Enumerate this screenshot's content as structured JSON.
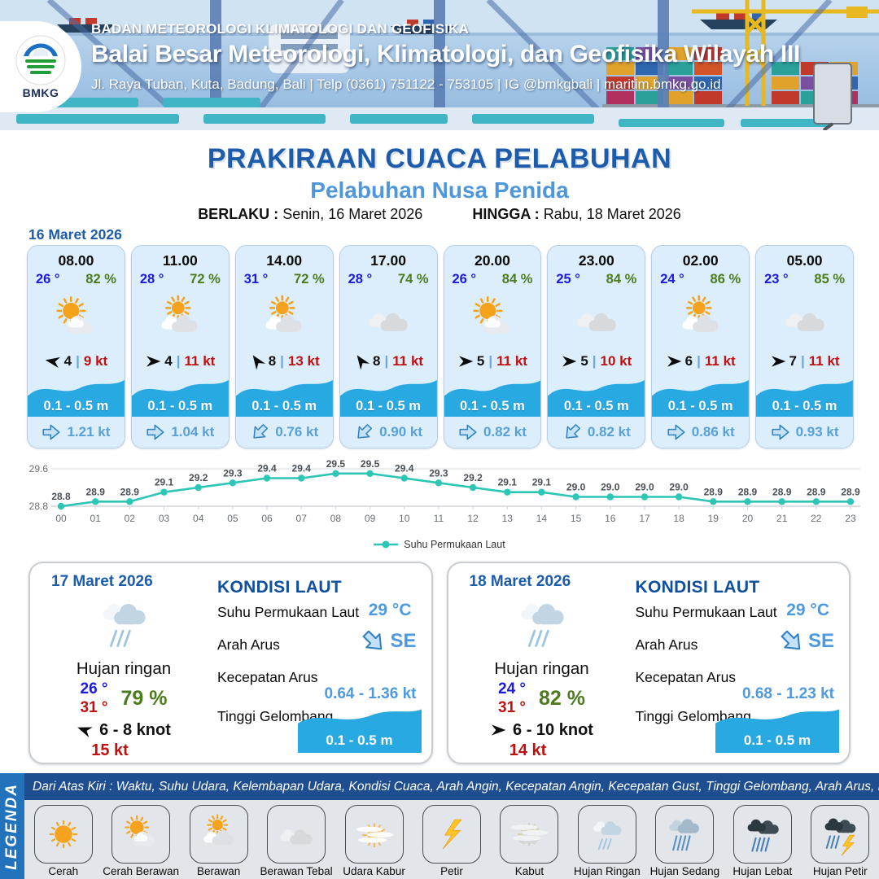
{
  "header": {
    "logo_label": "BMKG",
    "agency": "BADAN METEOROLOGI KLIMATOLOGI DAN GEOFISIKA",
    "office": "Balai Besar Meteorologi, Klimatologi, dan Geofisika Wilayah III",
    "address": "Jl. Raya Tuban, Kuta, Badung, Bali | Telp (0361) 751122 - 753105 | IG @bmkgbali | maritim.bmkg.go.id"
  },
  "title": {
    "main": "PRAKIRAAN CUACA PELABUHAN",
    "port": "Pelabuhan Nusa Penida",
    "valid_from_label": "BERLAKU :",
    "valid_from": "Senin, 16 Maret 2026",
    "valid_to_label": "HINGGA :",
    "valid_to": "Rabu, 18 Maret 2026"
  },
  "day1": {
    "date": "16 Maret 2026",
    "hours": [
      {
        "time": "08.00",
        "temp": "26 °",
        "rh": "82 %",
        "icon": "cerah-berawan",
        "wind_dir_deg": 190,
        "wind": "4",
        "gust": "9 kt",
        "wave": "0.1 - 0.5 m",
        "cur_dir_deg": 0,
        "current": "1.21 kt"
      },
      {
        "time": "11.00",
        "temp": "28 °",
        "rh": "72 %",
        "icon": "berawan",
        "wind_dir_deg": 0,
        "wind": "4",
        "gust": "11 kt",
        "wave": "0.1 - 0.5 m",
        "cur_dir_deg": 0,
        "current": "1.04 kt"
      },
      {
        "time": "14.00",
        "temp": "31 °",
        "rh": "72 %",
        "icon": "berawan",
        "wind_dir_deg": -125,
        "wind": "8",
        "gust": "13 kt",
        "wave": "0.1 - 0.5 m",
        "cur_dir_deg": 135,
        "current": "0.76 kt"
      },
      {
        "time": "17.00",
        "temp": "28 °",
        "rh": "74 %",
        "icon": "berawan-tebal",
        "wind_dir_deg": -125,
        "wind": "8",
        "gust": "11 kt",
        "wave": "0.1 - 0.5 m",
        "cur_dir_deg": 135,
        "current": "0.90 kt"
      },
      {
        "time": "20.00",
        "temp": "26 °",
        "rh": "84 %",
        "icon": "cerah-berawan",
        "wind_dir_deg": 0,
        "wind": "5",
        "gust": "11 kt",
        "wave": "0.1 - 0.5 m",
        "cur_dir_deg": 0,
        "current": "0.82 kt"
      },
      {
        "time": "23.00",
        "temp": "25 °",
        "rh": "84 %",
        "icon": "berawan-tebal",
        "wind_dir_deg": 0,
        "wind": "5",
        "gust": "10 kt",
        "wave": "0.1 - 0.5 m",
        "cur_dir_deg": 135,
        "current": "0.82 kt"
      },
      {
        "time": "02.00",
        "temp": "24 °",
        "rh": "86 %",
        "icon": "berawan",
        "wind_dir_deg": 0,
        "wind": "6",
        "gust": "11 kt",
        "wave": "0.1 - 0.5 m",
        "cur_dir_deg": 0,
        "current": "0.86 kt"
      },
      {
        "time": "05.00",
        "temp": "23 °",
        "rh": "85 %",
        "icon": "berawan-tebal",
        "wind_dir_deg": 0,
        "wind": "7",
        "gust": "11 kt",
        "wave": "0.1 - 0.5 m",
        "cur_dir_deg": 0,
        "current": "0.93 kt"
      }
    ]
  },
  "chart_data": {
    "type": "line",
    "x": [
      "00",
      "01",
      "02",
      "03",
      "04",
      "05",
      "06",
      "07",
      "08",
      "09",
      "10",
      "11",
      "12",
      "13",
      "14",
      "15",
      "16",
      "17",
      "18",
      "19",
      "20",
      "21",
      "22",
      "23"
    ],
    "values": [
      28.8,
      28.9,
      28.9,
      29.1,
      29.2,
      29.3,
      29.4,
      29.4,
      29.5,
      29.5,
      29.4,
      29.3,
      29.2,
      29.1,
      29.1,
      29.0,
      29.0,
      29.0,
      29.0,
      28.9,
      28.9,
      28.9,
      28.9,
      28.9
    ],
    "series_name": "Suhu Permukaan Laut",
    "ylim": [
      28.8,
      29.6
    ],
    "ytick_labels": [
      "29.6",
      "28.8"
    ],
    "line_color": "#2cc5b6",
    "legend_position": "bottom-center",
    "grid": "horizontal-only"
  },
  "days": [
    {
      "date": "17 Maret 2026",
      "condition": "Hujan ringan",
      "icon": "hujan-ringan",
      "temp_min": "26 °",
      "temp_max": "31 °",
      "rh": "79 %",
      "wind_dir_deg": 200,
      "wind_range": "6  - 8 knot",
      "gust": "15 kt",
      "sea": {
        "title": "KONDISI LAUT",
        "sst_label": "Suhu Permukaan Laut",
        "sst": "29 °C",
        "arah_label": "Arah Arus",
        "arah": "SE",
        "arah_deg": 45,
        "kec_label": "Kecepatan Arus",
        "kec": "0.64 - 1.36 kt",
        "gel_label": "Tinggi Gelombang",
        "gel": "0.1 - 0.5 m"
      }
    },
    {
      "date": "18 Maret 2026",
      "condition": "Hujan ringan",
      "icon": "hujan-ringan",
      "temp_min": "24 °",
      "temp_max": "31 °",
      "rh": "82 %",
      "wind_dir_deg": 0,
      "wind_range": "6  - 10 knot",
      "gust": "14 kt",
      "sea": {
        "title": "KONDISI LAUT",
        "sst_label": "Suhu Permukaan Laut",
        "sst": "29 °C",
        "arah_label": "Arah Arus",
        "arah": "SE",
        "arah_deg": 45,
        "kec_label": "Kecepatan Arus",
        "kec": "0.68 - 1.23 kt",
        "gel_label": "Tinggi Gelombang",
        "gel": "0.1 - 0.5 m"
      }
    }
  ],
  "legend": {
    "tab": "LEGENDA",
    "note": "Dari Atas Kiri : Waktu, Suhu Udara, Kelembapan Udara, Kondisi Cuaca, Arah Angin, Kecepatan Angin, Kecepatan Gust, Tinggi Gelombang, Arah Arus, Kecepatan Arus",
    "items": [
      {
        "label": "Cerah",
        "icon": "cerah"
      },
      {
        "label": "Cerah Berawan",
        "icon": "cerah-berawan"
      },
      {
        "label": "Berawan",
        "icon": "berawan"
      },
      {
        "label": "Berawan Tebal",
        "icon": "berawan-tebal"
      },
      {
        "label": "Udara Kabur",
        "icon": "udara-kabur"
      },
      {
        "label": "Petir",
        "icon": "petir"
      },
      {
        "label": "Kabut",
        "icon": "kabut"
      },
      {
        "label": "Hujan Ringan",
        "icon": "hujan-ringan"
      },
      {
        "label": "Hujan Sedang",
        "icon": "hujan-sedang"
      },
      {
        "label": "Hujan Lebat",
        "icon": "hujan-lebat"
      },
      {
        "label": "Hujan Petir",
        "icon": "hujan-petir"
      }
    ]
  },
  "colors": {
    "title_blue": "#1c5cab",
    "subtitle_blue": "#4f97dd",
    "temp_blue": "#1a1ae0",
    "humidity_green": "#4c7c1e",
    "gust_red": "#c01010",
    "wave_blue": "#29a9e1",
    "current_blue": "#58a0d8",
    "chart_teal": "#2cc5b6",
    "legend_bar_blue": "#1e4e8f",
    "legend_tab_blue": "#2273bb"
  }
}
